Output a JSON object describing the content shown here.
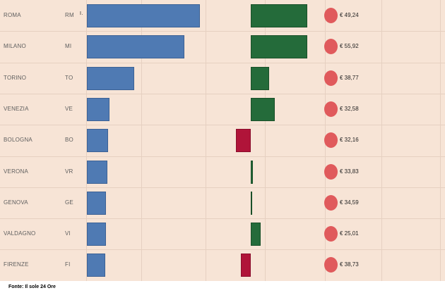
{
  "chart_data": {
    "type": "bar",
    "categories": [
      "ROMA",
      "MILANO",
      "TORINO",
      "VENEZIA",
      "BOLOGNA",
      "VERONA",
      "GENOVA",
      "VALDAGNO",
      "FIRENZE"
    ],
    "codes": [
      "RM",
      "MI",
      "TO",
      "VE",
      "BO",
      "VR",
      "GE",
      "VI",
      "FI"
    ],
    "series": [
      {
        "values": [
          100,
          86,
          42,
          20,
          19,
          18,
          17,
          17,
          16
        ]
      },
      {
        "values": [
          50,
          50,
          16,
          21,
          -13,
          2,
          0.5,
          9,
          -9
        ]
      }
    ],
    "prices": [
      "€ 49,24",
      "€ 55,92",
      "€ 38,77",
      "€ 32,58",
      "€ 32,16",
      "€ 33,83",
      "€ 34,59",
      "€ 25,01",
      "€ 38,73"
    ],
    "colors": {
      "bar1": "#4f7ab3",
      "bar2_positive": "#246b3a",
      "bar2_negative": "#b01439",
      "dot": "#e05a5c",
      "background": "#f7e4d6"
    },
    "grid": true
  },
  "marker_text": "I .",
  "source": "Fonte: Il sole 24 Ore"
}
